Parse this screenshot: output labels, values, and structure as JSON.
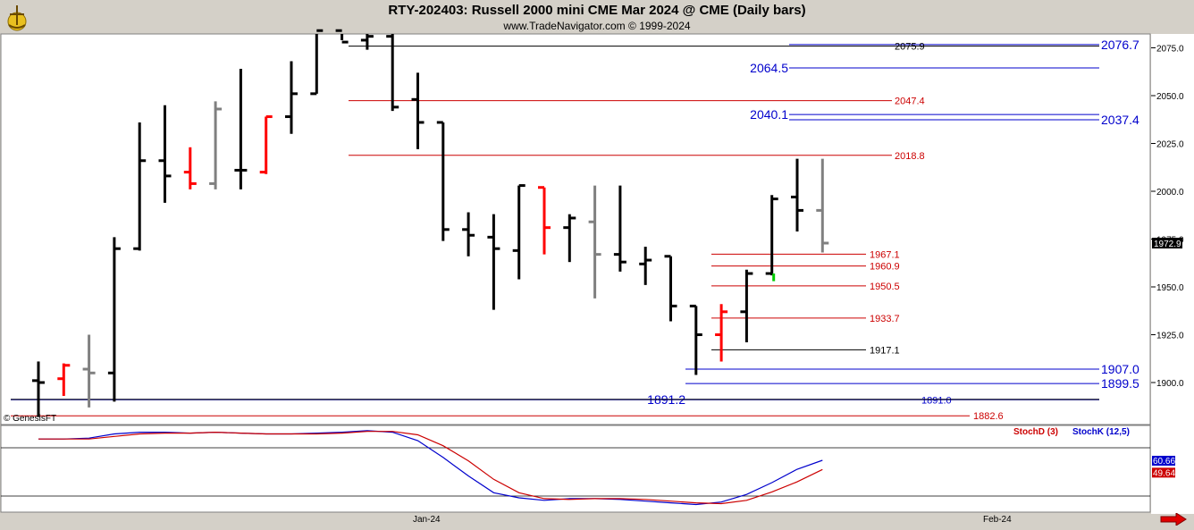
{
  "header": {
    "title": "RTY-202403:  Russell 2000 mini CME Mar 2024 @ CME  (Daily bars)",
    "subtitle": "www.TradeNavigator.com © 1999-2024"
  },
  "watermark": "© GenesisFT",
  "colors": {
    "background": "#ffffff",
    "frame": "#d4d0c8",
    "bar_up": "#000000",
    "bar_down": "#ff0000",
    "bar_neutral": "#808080",
    "blue_level": "#0000cc",
    "red_level": "#cc0000",
    "stoch_k": "#0000cc",
    "stoch_d": "#cc0000"
  },
  "chart_data": [
    {
      "type": "ohlc",
      "y_axis": {
        "min": 1880,
        "max": 2085,
        "ticks": [
          "2075.0",
          "2050.0",
          "2025.0",
          "2000.0",
          "1975.0",
          "1950.0",
          "1925.0",
          "1900.0"
        ],
        "last_price_label": "1972.9"
      },
      "x_axis": {
        "labels": [
          "Jan-24",
          "Feb-24"
        ]
      },
      "bars": [
        {
          "o": 1901,
          "h": 1911,
          "l": 1882,
          "c": 1900,
          "color": "black"
        },
        {
          "o": 1902,
          "h": 1910,
          "l": 1893,
          "c": 1909,
          "color": "red"
        },
        {
          "o": 1907,
          "h": 1925,
          "l": 1887,
          "c": 1905,
          "color": "gray"
        },
        {
          "o": 1905,
          "h": 1976,
          "l": 1890,
          "c": 1970,
          "color": "black"
        },
        {
          "o": 1970,
          "h": 2036,
          "l": 1969,
          "c": 2016,
          "color": "black"
        },
        {
          "o": 2016,
          "h": 2045,
          "l": 1994,
          "c": 2008,
          "color": "black"
        },
        {
          "o": 2010,
          "h": 2023,
          "l": 2001,
          "c": 2004,
          "color": "red"
        },
        {
          "o": 2004,
          "h": 2047,
          "l": 2001,
          "c": 2043,
          "color": "gray"
        },
        {
          "o": 2011,
          "h": 2064,
          "l": 2001,
          "c": 2011,
          "color": "black"
        },
        {
          "o": 2010,
          "h": 2039,
          "l": 2009,
          "c": 2039,
          "color": "red"
        },
        {
          "o": 2039,
          "h": 2068,
          "l": 2030,
          "c": 2051,
          "color": "black"
        },
        {
          "o": 2051,
          "h": 2084,
          "l": 2051,
          "c": 2084,
          "color": "black"
        },
        {
          "o": 2084,
          "h": 2090,
          "l": 2079,
          "c": 2078,
          "color": "black"
        },
        {
          "o": 2079,
          "h": 2086,
          "l": 2074,
          "c": 2081,
          "color": "black"
        },
        {
          "o": 2081,
          "h": 2086,
          "l": 2042,
          "c": 2044,
          "color": "black"
        },
        {
          "o": 2048,
          "h": 2062,
          "l": 2022,
          "c": 2036,
          "color": "black"
        },
        {
          "o": 2036,
          "h": 2036,
          "l": 1974,
          "c": 1980,
          "color": "black"
        },
        {
          "o": 1980,
          "h": 1989,
          "l": 1966,
          "c": 1977,
          "color": "black"
        },
        {
          "o": 1976,
          "h": 1988,
          "l": 1938,
          "c": 1970,
          "color": "black"
        },
        {
          "o": 1969,
          "h": 2003,
          "l": 1954,
          "c": 2003,
          "color": "black"
        },
        {
          "o": 2002,
          "h": 2002,
          "l": 1967,
          "c": 1981,
          "color": "red"
        },
        {
          "o": 1981,
          "h": 1988,
          "l": 1963,
          "c": 1986,
          "color": "black"
        },
        {
          "o": 1984,
          "h": 2003,
          "l": 1944,
          "c": 1967,
          "color": "gray"
        },
        {
          "o": 1967,
          "h": 2003,
          "l": 1958,
          "c": 1963,
          "color": "black"
        },
        {
          "o": 1962,
          "h": 1971,
          "l": 1951,
          "c": 1964,
          "color": "black"
        },
        {
          "o": 1966,
          "h": 1966,
          "l": 1932,
          "c": 1940,
          "color": "black"
        },
        {
          "o": 1940,
          "h": 1940,
          "l": 1904,
          "c": 1925,
          "color": "black"
        },
        {
          "o": 1925,
          "h": 1941,
          "l": 1911,
          "c": 1937,
          "color": "red"
        },
        {
          "o": 1937,
          "h": 1959,
          "l": 1921,
          "c": 1957,
          "color": "black"
        },
        {
          "o": 1957,
          "h": 1998,
          "l": 1956,
          "c": 1996,
          "color": "black"
        },
        {
          "o": 1997,
          "h": 2017,
          "l": 1979,
          "c": 1990,
          "color": "black"
        },
        {
          "o": 1990,
          "h": 2017,
          "l": 1968,
          "c": 1972.9,
          "color": "gray"
        }
      ],
      "levels": [
        {
          "value": 2076.7,
          "label": "2076.7",
          "color": "blue",
          "label_side": "right",
          "style": "large"
        },
        {
          "value": 2075.9,
          "label": "2075.9",
          "color": "black",
          "label_side": "mid",
          "style": "small"
        },
        {
          "value": 2064.5,
          "label": "2064.5",
          "color": "blue",
          "label_side": "left",
          "style": "large"
        },
        {
          "value": 2047.4,
          "label": "2047.4",
          "color": "red",
          "label_side": "mid",
          "style": "small"
        },
        {
          "value": 2040.1,
          "label": "2040.1",
          "color": "blue",
          "label_side": "left",
          "style": "large"
        },
        {
          "value": 2037.4,
          "label": "2037.4",
          "color": "blue",
          "label_side": "right",
          "style": "large"
        },
        {
          "value": 2018.8,
          "label": "2018.8",
          "color": "red",
          "label_side": "mid",
          "style": "small"
        },
        {
          "value": 1967.1,
          "label": "1967.1",
          "color": "red",
          "label_side": "mid2",
          "style": "small"
        },
        {
          "value": 1960.9,
          "label": "1960.9",
          "color": "red",
          "label_side": "mid2",
          "style": "small"
        },
        {
          "value": 1950.5,
          "label": "1950.5",
          "color": "red",
          "label_side": "mid2",
          "style": "small"
        },
        {
          "value": 1933.7,
          "label": "1933.7",
          "color": "red",
          "label_side": "mid2",
          "style": "small"
        },
        {
          "value": 1917.1,
          "label": "1917.1",
          "color": "black",
          "label_side": "mid2",
          "style": "small"
        },
        {
          "value": 1907.0,
          "label": "1907.0",
          "color": "blue",
          "label_side": "right",
          "style": "large"
        },
        {
          "value": 1899.5,
          "label": "1899.5",
          "color": "blue",
          "label_side": "right",
          "style": "large"
        },
        {
          "value": 1891.2,
          "label": "1891.2",
          "color": "blue",
          "label_side": "left",
          "style": "large"
        },
        {
          "value": 1891.0,
          "label": "1891.0",
          "color": "blue",
          "label_side": "mid",
          "style": "small"
        },
        {
          "value": 1882.6,
          "label": "1882.6",
          "color": "red",
          "label_side": "mid",
          "style": "small"
        }
      ]
    },
    {
      "type": "line",
      "ylim": [
        0,
        100
      ],
      "legend": [
        "StochD (3)",
        "StochK (12,5)"
      ],
      "series": [
        {
          "name": "StochK (12,5)",
          "color": "blue",
          "values": [
            86,
            86,
            87,
            92,
            94,
            94,
            93,
            94,
            93,
            92,
            92,
            93,
            94,
            96,
            94,
            84,
            64,
            42,
            22,
            16,
            13,
            15,
            15,
            14,
            12,
            10,
            8,
            11,
            20,
            34,
            50,
            60.66
          ]
        },
        {
          "name": "StochD (3)",
          "color": "red",
          "values": [
            86,
            86,
            86,
            89,
            92,
            93,
            93,
            94,
            93,
            92,
            92,
            92,
            93,
            95,
            95,
            91,
            78,
            60,
            38,
            22,
            15,
            14,
            15,
            15,
            14,
            12,
            10,
            9,
            13,
            23,
            35,
            49.64
          ]
        }
      ],
      "value_labels": [
        "60.66",
        "49.64"
      ]
    }
  ]
}
